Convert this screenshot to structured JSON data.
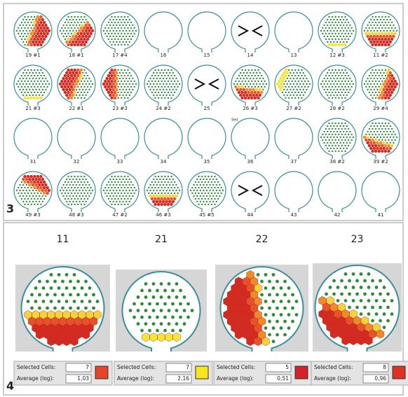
{
  "panel3": {
    "label": "3",
    "note": "Sed",
    "rows": [
      [
        "19 #1",
        "18 #1",
        "17 #4",
        "16",
        "15",
        "14",
        "13",
        "12 #3",
        "11 #2"
      ],
      [
        "21 #3",
        "22 #1",
        "23 #3",
        "24 #2",
        "25",
        "26 #3",
        "27 #2",
        "28 #2",
        "29 #4"
      ],
      [
        "31",
        "32",
        "33",
        "34",
        "35",
        "36",
        "37",
        "38 #2",
        "39 #2"
      ],
      [
        "49 #3",
        "48 #3",
        "47 #2",
        "46 #3",
        "45 #5",
        "44",
        "43",
        "42",
        "41"
      ]
    ]
  },
  "panel4": {
    "label": "4",
    "selected_label": "Selected Cells:",
    "average_label": "Average (log):",
    "items": [
      {
        "title": "11",
        "selected": "7",
        "average": "1,03",
        "color": "#e5432a"
      },
      {
        "title": "21",
        "selected": "7",
        "average": "2,16",
        "color": "#f7e41c"
      },
      {
        "title": "22",
        "selected": "5",
        "average": "0,51",
        "color": "#d3232a"
      },
      {
        "title": "23",
        "selected": "8",
        "average": "0,96",
        "color": "#e0301f"
      }
    ]
  }
}
